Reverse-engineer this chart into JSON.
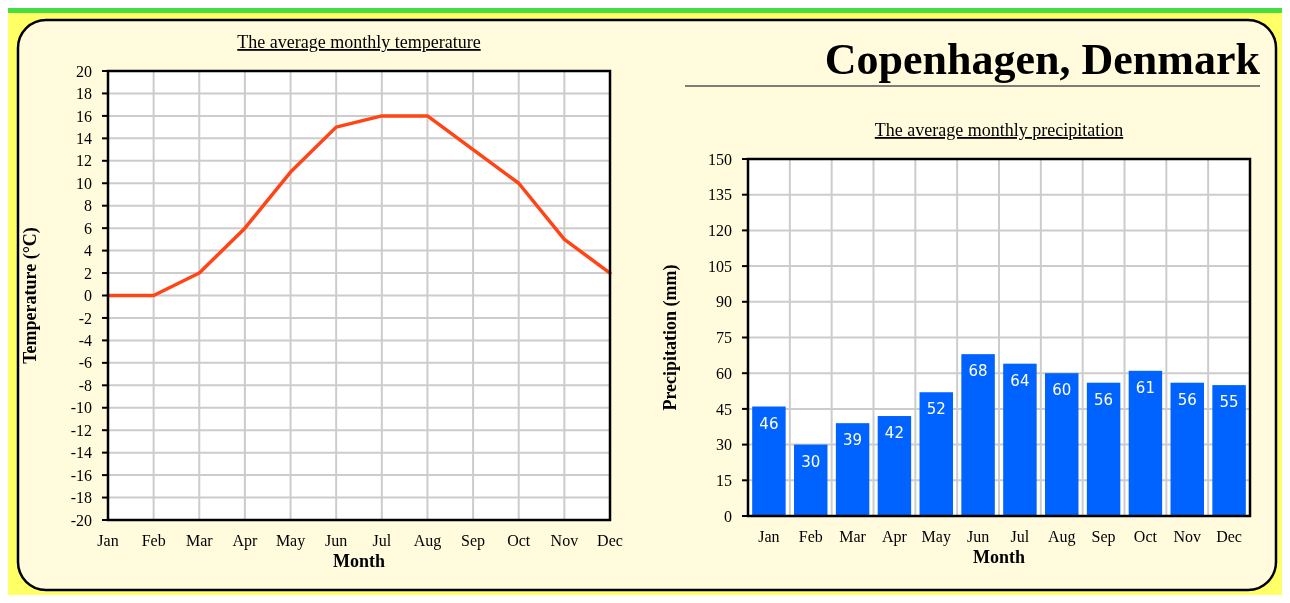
{
  "chart_data": [
    {
      "type": "line",
      "title": "The average monthly temperature",
      "xlabel": "Month",
      "ylabel": "Temperature (°C)",
      "categories": [
        "Jan",
        "Feb",
        "Mar",
        "Apr",
        "May",
        "Jun",
        "Jul",
        "Aug",
        "Sep",
        "Oct",
        "Nov",
        "Dec"
      ],
      "series": [
        {
          "color": "#ff4415",
          "values": [
            0,
            0,
            2,
            6,
            11,
            15,
            16,
            16,
            13,
            10,
            5,
            2
          ]
        }
      ],
      "ylim": [
        -20,
        20
      ],
      "yticks": [
        -20,
        -18,
        -16,
        -14,
        -12,
        -10,
        -8,
        -6,
        -4,
        -2,
        0,
        2,
        4,
        6,
        8,
        10,
        12,
        14,
        16,
        18,
        20
      ],
      "grid": true,
      "marker": "none"
    },
    {
      "type": "bar",
      "title": "Copenhagen, Denmark",
      "subtitle": "The average monthly precipitation",
      "xlabel": "Month",
      "ylabel": "Precipitation (mm)",
      "categories": [
        "Jan",
        "Feb",
        "Mar",
        "Apr",
        "May",
        "Jun",
        "Jul",
        "Aug",
        "Sep",
        "Oct",
        "Nov",
        "Dec"
      ],
      "series": [
        {
          "color": "#0062ff",
          "values": [
            46,
            30,
            39,
            42,
            52,
            68,
            64,
            60,
            56,
            61,
            56,
            55
          ]
        }
      ],
      "ylim": [
        0,
        150
      ],
      "yticks": [
        0,
        15,
        30,
        45,
        60,
        75,
        90,
        105,
        120,
        135,
        150
      ],
      "grid": true,
      "data_labels": true
    }
  ]
}
